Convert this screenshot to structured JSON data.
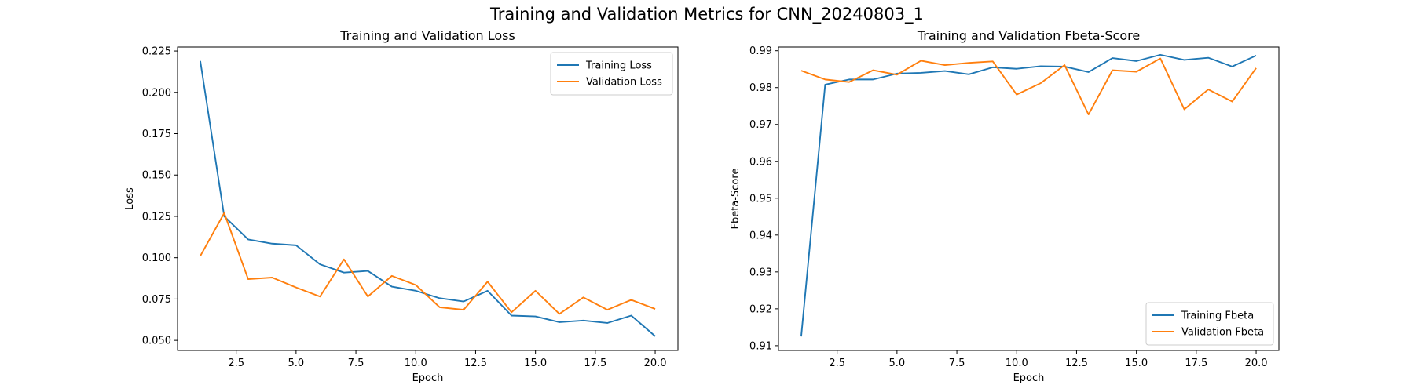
{
  "suptitle": "Training and Validation Metrics for CNN_20240803_1",
  "colors": {
    "training": "#1f77b4",
    "validation": "#ff7f0e"
  },
  "chart_data": [
    {
      "type": "line",
      "title": "Training and Validation Loss",
      "xlabel": "Epoch",
      "ylabel": "Loss",
      "xlim": [
        0.05,
        20.95
      ],
      "ylim": [
        0.0439,
        0.2274
      ],
      "xticks": [
        2.5,
        5.0,
        7.5,
        10.0,
        12.5,
        15.0,
        17.5,
        20.0
      ],
      "xtick_labels": [
        "2.5",
        "5.0",
        "7.5",
        "10.0",
        "12.5",
        "15.0",
        "17.5",
        "20.0"
      ],
      "yticks": [
        0.05,
        0.075,
        0.1,
        0.125,
        0.15,
        0.175,
        0.2,
        0.225
      ],
      "ytick_labels": [
        "0.050",
        "0.075",
        "0.100",
        "0.125",
        "0.150",
        "0.175",
        "0.200",
        "0.225"
      ],
      "grid": false,
      "legend_position": "top-right",
      "x": [
        1,
        2,
        3,
        4,
        5,
        6,
        7,
        8,
        9,
        10,
        11,
        12,
        13,
        14,
        15,
        16,
        17,
        18,
        19,
        20
      ],
      "series": [
        {
          "name": "Training Loss",
          "color": "#1f77b4",
          "values": [
            0.219,
            0.125,
            0.111,
            0.1085,
            0.1075,
            0.096,
            0.091,
            0.092,
            0.0825,
            0.08,
            0.0755,
            0.0735,
            0.08,
            0.065,
            0.0645,
            0.061,
            0.062,
            0.0605,
            0.065,
            0.0525
          ]
        },
        {
          "name": "Validation Loss",
          "color": "#ff7f0e",
          "values": [
            0.101,
            0.127,
            0.087,
            0.088,
            0.082,
            0.0765,
            0.099,
            0.0765,
            0.089,
            0.0835,
            0.07,
            0.0685,
            0.0855,
            0.067,
            0.08,
            0.066,
            0.076,
            0.0685,
            0.0745,
            0.069
          ]
        }
      ]
    },
    {
      "type": "line",
      "title": "Training and Validation Fbeta-Score",
      "xlabel": "Epoch",
      "ylabel": "Fbeta-Score",
      "xlim": [
        0.05,
        20.95
      ],
      "ylim": [
        0.9087,
        0.991
      ],
      "xticks": [
        2.5,
        5.0,
        7.5,
        10.0,
        12.5,
        15.0,
        17.5,
        20.0
      ],
      "xtick_labels": [
        "2.5",
        "5.0",
        "7.5",
        "10.0",
        "12.5",
        "15.0",
        "17.5",
        "20.0"
      ],
      "yticks": [
        0.91,
        0.92,
        0.93,
        0.94,
        0.95,
        0.96,
        0.97,
        0.98,
        0.99
      ],
      "ytick_labels": [
        "0.91",
        "0.92",
        "0.93",
        "0.94",
        "0.95",
        "0.96",
        "0.97",
        "0.98",
        "0.99"
      ],
      "grid": false,
      "legend_position": "bottom-right",
      "x": [
        1,
        2,
        3,
        4,
        5,
        6,
        7,
        8,
        9,
        10,
        11,
        12,
        13,
        14,
        15,
        16,
        17,
        18,
        19,
        20
      ],
      "series": [
        {
          "name": "Training Fbeta",
          "color": "#1f77b4",
          "values": [
            0.9125,
            0.9808,
            0.9822,
            0.9822,
            0.9838,
            0.984,
            0.9845,
            0.9836,
            0.9855,
            0.9851,
            0.9858,
            0.9857,
            0.9842,
            0.988,
            0.9872,
            0.9889,
            0.9875,
            0.9881,
            0.9857,
            0.9887
          ]
        },
        {
          "name": "Validation Fbeta",
          "color": "#ff7f0e",
          "values": [
            0.9846,
            0.9822,
            0.9815,
            0.9847,
            0.9835,
            0.9873,
            0.9861,
            0.9867,
            0.9871,
            0.9781,
            0.9812,
            0.9861,
            0.9727,
            0.9847,
            0.9843,
            0.9879,
            0.9741,
            0.9795,
            0.9762,
            0.9853
          ]
        }
      ]
    }
  ]
}
